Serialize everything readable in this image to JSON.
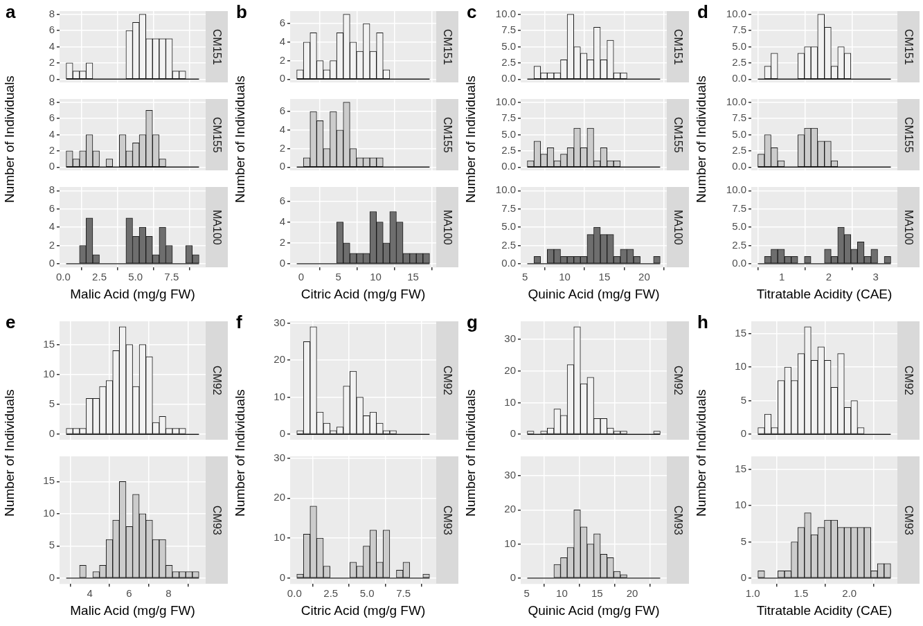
{
  "chart_data": [
    {
      "type": "histogram",
      "title": "CM151",
      "annotations": [
        "a"
      ],
      "ylabel": "Number of Individuals",
      "color": "#f2f2f2",
      "bins": [
        0.2,
        0.66,
        1.12,
        1.58,
        2.04,
        2.5,
        2.96,
        3.42,
        3.88,
        4.34,
        4.8,
        5.26,
        5.72,
        6.18,
        6.64,
        7.1,
        7.56,
        8.02,
        8.48,
        8.94,
        9.4
      ],
      "values": [
        2,
        1,
        1,
        2,
        0,
        0,
        0,
        0,
        0,
        6,
        7,
        8,
        5,
        5,
        5,
        5,
        1,
        1,
        0,
        0
      ],
      "xlim": [
        -0.26,
        9.86
      ],
      "xticks": [
        {
          "value": 0,
          "label": null
        },
        {
          "value": 2.5,
          "label": null
        },
        {
          "value": 5,
          "label": null
        },
        {
          "value": 7.5,
          "label": null
        }
      ],
      "ylim": [
        -0.4,
        8.4
      ],
      "yticks": [
        0,
        2,
        4,
        6,
        8
      ],
      "grid": true,
      "tick_labels": "y"
    },
    {
      "type": "histogram",
      "title": "CM155",
      "color": "#cccccc",
      "bins": [
        0.2,
        0.66,
        1.12,
        1.58,
        2.04,
        2.5,
        2.96,
        3.42,
        3.88,
        4.34,
        4.8,
        5.26,
        5.72,
        6.18,
        6.64,
        7.1,
        7.56,
        8.02,
        8.48,
        8.94,
        9.4
      ],
      "values": [
        2,
        1,
        2,
        4,
        2,
        0,
        1,
        0,
        4,
        2,
        3,
        4,
        7,
        4,
        1,
        0,
        0,
        0,
        0,
        0
      ],
      "xlim": [
        -0.26,
        9.86
      ],
      "xticks": [
        {
          "value": 0,
          "label": null
        },
        {
          "value": 2.5,
          "label": null
        },
        {
          "value": 5,
          "label": null
        },
        {
          "value": 7.5,
          "label": null
        }
      ],
      "ylim": [
        -0.4,
        8.4
      ],
      "yticks": [
        0,
        2,
        4,
        6,
        8
      ],
      "grid": true,
      "tick_labels": "y"
    },
    {
      "type": "histogram",
      "title": "MA100",
      "xlabel": "Malic Acid (mg/g FW)",
      "color": "#6e6e6e",
      "bins": [
        0.2,
        0.66,
        1.12,
        1.58,
        2.04,
        2.5,
        2.96,
        3.42,
        3.88,
        4.34,
        4.8,
        5.26,
        5.72,
        6.18,
        6.64,
        7.1,
        7.56,
        8.02,
        8.48,
        8.94,
        9.4
      ],
      "values": [
        0,
        0,
        2,
        5,
        1,
        0,
        0,
        0,
        0,
        5,
        3,
        4,
        3,
        1,
        4,
        2,
        0,
        0,
        2,
        1
      ],
      "xlim": [
        -0.26,
        9.86
      ],
      "xticks": [
        {
          "value": 0,
          "label": "0.0"
        },
        2.5,
        {
          "value": 5,
          "label": "5.0"
        },
        7.5
      ],
      "ylim": [
        -0.4,
        8.4
      ],
      "yticks": [
        0,
        2,
        4,
        6,
        8
      ],
      "grid": true
    },
    {
      "type": "histogram",
      "title": "CM151",
      "annotations": [
        "b"
      ],
      "ylabel": "Number of Individuals",
      "color": "#f2f2f2",
      "bins": [
        -0.58,
        0.31,
        1.2,
        2.09,
        2.98,
        3.87,
        4.76,
        5.65,
        6.54,
        7.43,
        8.32,
        9.21,
        10.1,
        10.99,
        11.88,
        12.77,
        13.66,
        14.55,
        15.44,
        16.33,
        17.22
      ],
      "values": [
        1,
        4,
        5,
        2,
        1,
        2,
        5,
        7,
        4,
        3,
        6,
        3,
        5,
        1,
        0,
        0,
        0,
        0,
        0,
        0
      ],
      "xlim": [
        -1.47,
        18.11
      ],
      "xticks": [
        {
          "value": 0,
          "label": null
        },
        {
          "value": 5,
          "label": null
        },
        {
          "value": 10,
          "label": null
        },
        {
          "value": 15,
          "label": null
        }
      ],
      "ylim": [
        -0.35,
        7.35
      ],
      "yticks": [
        0,
        2,
        4,
        6
      ],
      "grid": true,
      "tick_labels": "y"
    },
    {
      "type": "histogram",
      "title": "CM155",
      "color": "#cccccc",
      "bins": [
        -0.58,
        0.31,
        1.2,
        2.09,
        2.98,
        3.87,
        4.76,
        5.65,
        6.54,
        7.43,
        8.32,
        9.21,
        10.1,
        10.99,
        11.88,
        12.77,
        13.66,
        14.55,
        15.44,
        16.33,
        17.22
      ],
      "values": [
        0,
        1,
        6,
        5,
        2,
        6,
        4,
        7,
        2,
        1,
        1,
        1,
        1,
        0,
        0,
        0,
        0,
        0,
        0,
        0
      ],
      "xlim": [
        -1.47,
        18.11
      ],
      "xticks": [
        {
          "value": 0,
          "label": null
        },
        {
          "value": 5,
          "label": null
        },
        {
          "value": 10,
          "label": null
        },
        {
          "value": 15,
          "label": null
        }
      ],
      "ylim": [
        -0.35,
        7.35
      ],
      "yticks": [
        0,
        2,
        4,
        6
      ],
      "grid": true,
      "tick_labels": "y"
    },
    {
      "type": "histogram",
      "title": "MA100",
      "xlabel": "Citric Acid (mg/g FW)",
      "color": "#6e6e6e",
      "bins": [
        -0.58,
        0.31,
        1.2,
        2.09,
        2.98,
        3.87,
        4.76,
        5.65,
        6.54,
        7.43,
        8.32,
        9.21,
        10.1,
        10.99,
        11.88,
        12.77,
        13.66,
        14.55,
        15.44,
        16.33,
        17.22
      ],
      "values": [
        0,
        0,
        0,
        0,
        0,
        0,
        4,
        2,
        1,
        1,
        1,
        5,
        4,
        2,
        5,
        4,
        1,
        1,
        1,
        1
      ],
      "xlim": [
        -1.47,
        18.11
      ],
      "xticks": [
        0,
        5,
        10,
        15
      ],
      "ylim": [
        -0.35,
        7.35
      ],
      "yticks": [
        0,
        2,
        4,
        6
      ],
      "grid": true
    },
    {
      "type": "histogram",
      "title": "CM151",
      "annotations": [
        "c"
      ],
      "ylabel": "Number of Individuals",
      "color": "#f2f2f2",
      "bins": [
        5.3,
        6.14,
        6.97,
        7.81,
        8.64,
        9.48,
        10.31,
        11.15,
        11.98,
        12.82,
        13.65,
        14.49,
        15.32,
        16.16,
        16.99,
        17.83,
        18.66,
        19.5,
        20.33,
        21.17,
        22.0
      ],
      "values": [
        0,
        2,
        1,
        1,
        1,
        3,
        10,
        5,
        4,
        3,
        8,
        3,
        6,
        1,
        1,
        0,
        0,
        0,
        0,
        0
      ],
      "xlim": [
        4.47,
        22.84
      ],
      "xticks": [
        {
          "value": 5,
          "label": null
        },
        {
          "value": 10,
          "label": null
        },
        {
          "value": 15,
          "label": null
        },
        {
          "value": 20,
          "label": null
        }
      ],
      "ylim": [
        -0.5,
        10.5
      ],
      "yticks": [
        {
          "value": 0,
          "label": "0.0"
        },
        2.5,
        {
          "value": 5,
          "label": "5.0"
        },
        7.5,
        {
          "value": 10,
          "label": "10.0"
        }
      ],
      "grid": true,
      "tick_labels": "y"
    },
    {
      "type": "histogram",
      "title": "CM155",
      "color": "#cccccc",
      "bins": [
        5.3,
        6.14,
        6.97,
        7.81,
        8.64,
        9.48,
        10.31,
        11.15,
        11.98,
        12.82,
        13.65,
        14.49,
        15.32,
        16.16,
        16.99,
        17.83,
        18.66,
        19.5,
        20.33,
        21.17,
        22.0
      ],
      "values": [
        1,
        4,
        2,
        3,
        1,
        2,
        3,
        6,
        3,
        6,
        1,
        3,
        1,
        1,
        0,
        0,
        0,
        0,
        0,
        0
      ],
      "xlim": [
        4.47,
        22.84
      ],
      "xticks": [
        {
          "value": 5,
          "label": null
        },
        {
          "value": 10,
          "label": null
        },
        {
          "value": 15,
          "label": null
        },
        {
          "value": 20,
          "label": null
        }
      ],
      "ylim": [
        -0.5,
        10.5
      ],
      "yticks": [
        {
          "value": 0,
          "label": "0.0"
        },
        2.5,
        {
          "value": 5,
          "label": "5.0"
        },
        7.5,
        {
          "value": 10,
          "label": "10.0"
        }
      ],
      "grid": true,
      "tick_labels": "y"
    },
    {
      "type": "histogram",
      "title": "MA100",
      "xlabel": "Quinic Acid (mg/g FW)",
      "color": "#6e6e6e",
      "bins": [
        5.3,
        6.14,
        6.97,
        7.81,
        8.64,
        9.48,
        10.31,
        11.15,
        11.98,
        12.82,
        13.65,
        14.49,
        15.32,
        16.16,
        16.99,
        17.83,
        18.66,
        19.5,
        20.33,
        21.17,
        22.0
      ],
      "values": [
        0,
        1,
        0,
        2,
        2,
        1,
        1,
        1,
        1,
        4,
        5,
        4,
        4,
        1,
        2,
        2,
        1,
        0,
        0,
        1
      ],
      "xlim": [
        4.47,
        22.84
      ],
      "xticks": [
        5,
        10,
        15,
        20
      ],
      "ylim": [
        -0.5,
        10.5
      ],
      "yticks": [
        {
          "value": 0,
          "label": "0.0"
        },
        2.5,
        {
          "value": 5,
          "label": "5.0"
        },
        7.5,
        {
          "value": 10,
          "label": "10.0"
        }
      ],
      "grid": true
    },
    {
      "type": "histogram",
      "title": "CM151",
      "annotations": [
        "d"
      ],
      "ylabel": "Number of Individuals",
      "color": "#f2f2f2",
      "bins": [
        0.49,
        0.63,
        0.77,
        0.91,
        1.06,
        1.2,
        1.34,
        1.48,
        1.62,
        1.76,
        1.91,
        2.05,
        2.19,
        2.33,
        2.47,
        2.61,
        2.75,
        2.9,
        3.04,
        3.18,
        3.32
      ],
      "values": [
        0,
        2,
        4,
        0,
        0,
        0,
        4,
        5,
        5,
        10,
        8,
        2,
        5,
        4,
        0,
        0,
        0,
        0,
        0,
        0
      ],
      "xlim": [
        0.35,
        3.46
      ],
      "xticks": [
        {
          "value": 1,
          "label": null
        },
        {
          "value": 2,
          "label": null
        },
        {
          "value": 3,
          "label": null
        }
      ],
      "ylim": [
        -0.5,
        10.5
      ],
      "yticks": [
        {
          "value": 0,
          "label": "0.0"
        },
        2.5,
        {
          "value": 5,
          "label": "5.0"
        },
        7.5,
        {
          "value": 10,
          "label": "10.0"
        }
      ],
      "grid": true,
      "tick_labels": "y"
    },
    {
      "type": "histogram",
      "title": "CM155",
      "color": "#cccccc",
      "bins": [
        0.49,
        0.63,
        0.77,
        0.91,
        1.06,
        1.2,
        1.34,
        1.48,
        1.62,
        1.76,
        1.91,
        2.05,
        2.19,
        2.33,
        2.47,
        2.61,
        2.75,
        2.9,
        3.04,
        3.18,
        3.32
      ],
      "values": [
        2,
        5,
        3,
        1,
        0,
        0,
        5,
        6,
        6,
        4,
        4,
        1,
        0,
        0,
        0,
        0,
        0,
        0,
        0,
        0
      ],
      "xlim": [
        0.35,
        3.46
      ],
      "xticks": [
        {
          "value": 1,
          "label": null
        },
        {
          "value": 2,
          "label": null
        },
        {
          "value": 3,
          "label": null
        }
      ],
      "ylim": [
        -0.5,
        10.5
      ],
      "yticks": [
        {
          "value": 0,
          "label": "0.0"
        },
        2.5,
        {
          "value": 5,
          "label": "5.0"
        },
        7.5,
        {
          "value": 10,
          "label": "10.0"
        }
      ],
      "grid": true,
      "tick_labels": "y"
    },
    {
      "type": "histogram",
      "title": "MA100",
      "xlabel": "Titratable Acidity (CAE)",
      "color": "#6e6e6e",
      "bins": [
        0.49,
        0.63,
        0.77,
        0.91,
        1.06,
        1.2,
        1.34,
        1.48,
        1.62,
        1.76,
        1.91,
        2.05,
        2.19,
        2.33,
        2.47,
        2.61,
        2.75,
        2.9,
        3.04,
        3.18,
        3.32
      ],
      "values": [
        0,
        1,
        2,
        2,
        1,
        1,
        0,
        1,
        0,
        0,
        2,
        1,
        5,
        4,
        2,
        3,
        1,
        2,
        0,
        1
      ],
      "xlim": [
        0.35,
        3.46
      ],
      "xticks": [
        1,
        2,
        3
      ],
      "ylim": [
        -0.5,
        10.5
      ],
      "yticks": [
        {
          "value": 0,
          "label": "0.0"
        },
        2.5,
        {
          "value": 5,
          "label": "5.0"
        },
        7.5,
        {
          "value": 10,
          "label": "10.0"
        }
      ],
      "grid": true
    },
    {
      "type": "histogram",
      "title": "CM92",
      "annotations": [
        "e"
      ],
      "ylabel": "Number of Individuals",
      "color": "#f2f2f2",
      "bins": [
        2.8,
        3.14,
        3.48,
        3.81,
        4.15,
        4.49,
        4.83,
        5.16,
        5.5,
        5.84,
        6.18,
        6.51,
        6.85,
        7.19,
        7.53,
        7.86,
        8.2,
        8.54,
        8.88,
        9.21,
        9.55
      ],
      "values": [
        1,
        1,
        1,
        6,
        6,
        8,
        9,
        14,
        18,
        15,
        8,
        15,
        13,
        2,
        3,
        1,
        1,
        1,
        0,
        0
      ],
      "xlim": [
        2.46,
        9.89
      ],
      "xticks": [
        {
          "value": 4,
          "label": null
        },
        {
          "value": 6,
          "label": null
        },
        {
          "value": 8,
          "label": null
        }
      ],
      "ylim": [
        -0.9,
        18.9
      ],
      "yticks": [
        0,
        5,
        10,
        15
      ],
      "grid": true,
      "tick_labels": "y"
    },
    {
      "type": "histogram",
      "title": "CM93",
      "xlabel": "Malic Acid (mg/g FW)",
      "color": "#cccccc",
      "bins": [
        2.8,
        3.14,
        3.48,
        3.81,
        4.15,
        4.49,
        4.83,
        5.16,
        5.5,
        5.84,
        6.18,
        6.51,
        6.85,
        7.19,
        7.53,
        7.86,
        8.2,
        8.54,
        8.88,
        9.21,
        9.55
      ],
      "values": [
        0,
        0,
        2,
        0,
        1,
        2,
        6,
        9,
        15,
        8,
        13,
        10,
        9,
        6,
        6,
        2,
        1,
        1,
        1,
        1
      ],
      "xlim": [
        2.46,
        9.89
      ],
      "xticks": [
        4,
        6,
        8
      ],
      "ylim": [
        -0.9,
        18.9
      ],
      "yticks": [
        0,
        5,
        10,
        15
      ],
      "grid": true
    },
    {
      "type": "histogram",
      "title": "CM92",
      "annotations": [
        "f"
      ],
      "ylabel": "Number of Individuals",
      "color": "#f2f2f2",
      "bins": [
        0.16,
        0.62,
        1.07,
        1.53,
        1.99,
        2.45,
        2.9,
        3.36,
        3.82,
        4.27,
        4.73,
        5.19,
        5.64,
        6.1,
        6.56,
        7.02,
        7.47,
        7.93,
        8.39,
        8.84,
        9.3
      ],
      "values": [
        1,
        25,
        29,
        6,
        3,
        1,
        2,
        13,
        17,
        10,
        5,
        6,
        3,
        1,
        1,
        0,
        0,
        0,
        0,
        0
      ],
      "xlim": [
        -0.3,
        9.76
      ],
      "xticks": [
        {
          "value": 0,
          "label": null
        },
        {
          "value": 2.5,
          "label": null
        },
        {
          "value": 5,
          "label": null
        },
        {
          "value": 7.5,
          "label": null
        }
      ],
      "ylim": [
        -1.45,
        30.45
      ],
      "yticks": [
        0,
        10,
        20,
        30
      ],
      "grid": true,
      "tick_labels": "y"
    },
    {
      "type": "histogram",
      "title": "CM93",
      "xlabel": "Citric Acid (mg/g FW)",
      "color": "#cccccc",
      "bins": [
        0.16,
        0.62,
        1.07,
        1.53,
        1.99,
        2.45,
        2.9,
        3.36,
        3.82,
        4.27,
        4.73,
        5.19,
        5.64,
        6.1,
        6.56,
        7.02,
        7.47,
        7.93,
        8.39,
        8.84,
        9.3
      ],
      "values": [
        1,
        11,
        18,
        10,
        3,
        0,
        0,
        0,
        4,
        3,
        8,
        12,
        4,
        12,
        0,
        2,
        4,
        0,
        0,
        1
      ],
      "xlim": [
        -0.3,
        9.76
      ],
      "xticks": [
        {
          "value": 0,
          "label": "0.0"
        },
        2.5,
        {
          "value": 5,
          "label": "5.0"
        },
        7.5
      ],
      "ylim": [
        -1.45,
        30.45
      ],
      "yticks": [
        0,
        10,
        20,
        30
      ],
      "grid": true
    },
    {
      "type": "histogram",
      "title": "CM92",
      "annotations": [
        "g"
      ],
      "ylabel": "Number of Individuals",
      "color": "#f2f2f2",
      "bins": [
        5.09,
        6.03,
        6.98,
        7.92,
        8.87,
        9.81,
        10.76,
        11.7,
        12.65,
        13.59,
        14.54,
        15.48,
        16.42,
        17.37,
        18.31,
        19.26,
        20.2,
        21.15,
        22.09,
        23.04,
        23.98
      ],
      "values": [
        1,
        0,
        1,
        2,
        8,
        6,
        22,
        34,
        16,
        18,
        5,
        5,
        2,
        1,
        1,
        0,
        0,
        0,
        0,
        1
      ],
      "xlim": [
        4.15,
        24.92
      ],
      "xticks": [
        {
          "value": 5,
          "label": null
        },
        {
          "value": 10,
          "label": null
        },
        {
          "value": 15,
          "label": null
        },
        {
          "value": 20,
          "label": null
        }
      ],
      "ylim": [
        -1.7,
        35.7
      ],
      "yticks": [
        0,
        10,
        20,
        30
      ],
      "grid": true,
      "tick_labels": "y"
    },
    {
      "type": "histogram",
      "title": "CM93",
      "xlabel": "Quinic Acid (mg/g FW)",
      "color": "#cccccc",
      "bins": [
        5.09,
        6.03,
        6.98,
        7.92,
        8.87,
        9.81,
        10.76,
        11.7,
        12.65,
        13.59,
        14.54,
        15.48,
        16.42,
        17.37,
        18.31,
        19.26,
        20.2,
        21.15,
        22.09,
        23.04,
        23.98
      ],
      "values": [
        0,
        0,
        0,
        0,
        4,
        6,
        9,
        20,
        15,
        10,
        13,
        7,
        6,
        2,
        1,
        0,
        0,
        0,
        0,
        0
      ],
      "xlim": [
        4.15,
        24.92
      ],
      "xticks": [
        5,
        10,
        15,
        20
      ],
      "ylim": [
        -1.7,
        35.7
      ],
      "yticks": [
        0,
        10,
        20,
        30
      ],
      "grid": true
    },
    {
      "type": "histogram",
      "title": "CM92",
      "annotations": [
        "h"
      ],
      "ylabel": "Number of Individuals",
      "color": "#f2f2f2",
      "bins": [
        1.054,
        1.123,
        1.192,
        1.26,
        1.329,
        1.398,
        1.467,
        1.535,
        1.604,
        1.673,
        1.742,
        1.81,
        1.879,
        1.948,
        2.017,
        2.085,
        2.154,
        2.223,
        2.292,
        2.36,
        2.429
      ],
      "values": [
        1,
        3,
        1,
        8,
        10,
        8,
        12,
        16,
        11,
        13,
        11,
        7,
        12,
        4,
        5,
        1,
        0,
        0,
        0,
        0
      ],
      "xlim": [
        0.985,
        2.498
      ],
      "xticks": [
        {
          "value": 1,
          "label": null
        },
        {
          "value": 1.5,
          "label": null
        },
        {
          "value": 2,
          "label": null
        }
      ],
      "ylim": [
        -0.8,
        16.8
      ],
      "yticks": [
        0,
        5,
        10,
        15
      ],
      "grid": true,
      "tick_labels": "y"
    },
    {
      "type": "histogram",
      "title": "CM93",
      "xlabel": "Titratable Acidity (CAE)",
      "color": "#cccccc",
      "bins": [
        1.054,
        1.123,
        1.192,
        1.26,
        1.329,
        1.398,
        1.467,
        1.535,
        1.604,
        1.673,
        1.742,
        1.81,
        1.879,
        1.948,
        2.017,
        2.085,
        2.154,
        2.223,
        2.292,
        2.36,
        2.429
      ],
      "values": [
        1,
        0,
        0,
        1,
        1,
        5,
        7,
        9,
        6,
        7,
        8,
        8,
        7,
        7,
        7,
        7,
        7,
        1,
        2,
        2
      ],
      "xlim": [
        0.985,
        2.498
      ],
      "xticks": [
        {
          "value": 1,
          "label": "1.0"
        },
        1.5,
        {
          "value": 2,
          "label": "2.0"
        }
      ],
      "ylim": [
        -0.8,
        16.8
      ],
      "yticks": [
        0,
        5,
        10,
        15
      ],
      "grid": true
    }
  ]
}
